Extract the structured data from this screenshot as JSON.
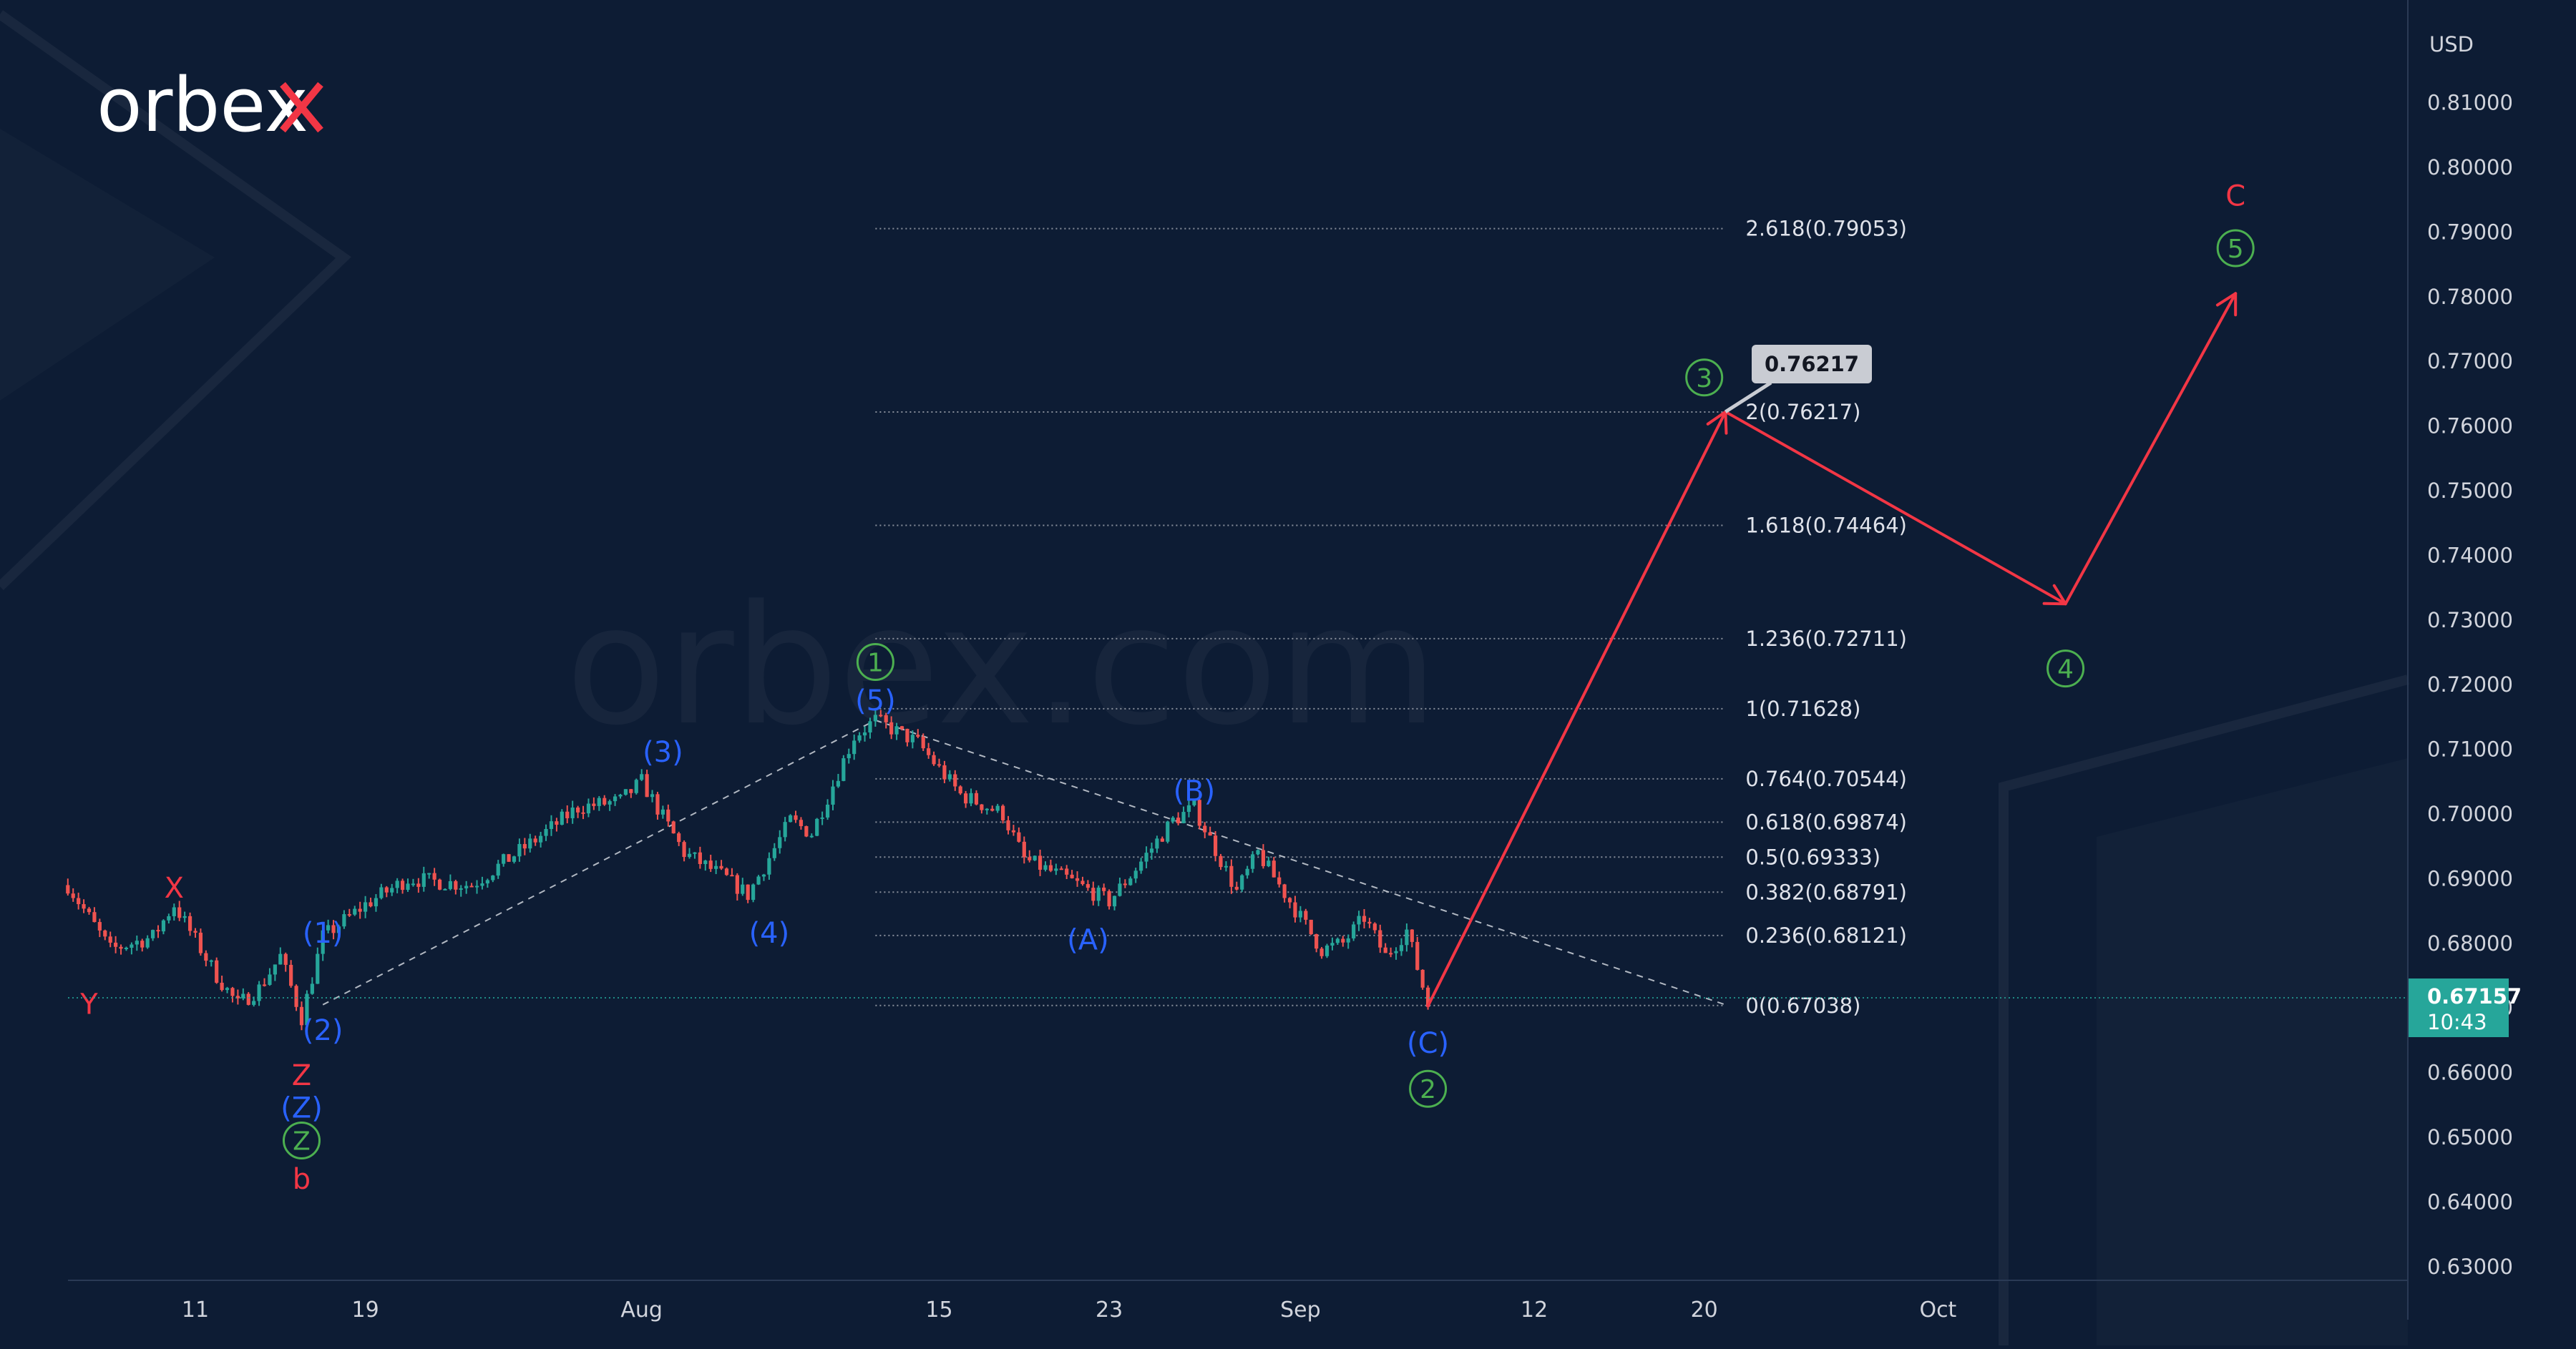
{
  "brand": {
    "logo_text": "orbex",
    "watermark": "orbex.com"
  },
  "axis": {
    "currency_label": "USD"
  },
  "current_price": {
    "value": "0.67157",
    "time": "10:43",
    "bg": "#26a69a"
  },
  "callout": {
    "value": "0.76217",
    "bg": "#c9ccd3"
  },
  "colors": {
    "up": "#26a69a",
    "down": "#ef5350",
    "forecast": "#f23645",
    "blue": "#2962ff",
    "green": "#4caf50",
    "background": "#0d1c34"
  },
  "chart_data": {
    "type": "line",
    "title": "",
    "xlabel": "",
    "ylabel": "USD",
    "ylim": [
      0.625,
      0.82
    ],
    "y_ticks": [
      0.63,
      0.64,
      0.65,
      0.66,
      0.67,
      0.68,
      0.69,
      0.7,
      0.71,
      0.72,
      0.73,
      0.74,
      0.75,
      0.76,
      0.77,
      0.78,
      0.79,
      0.8,
      0.81
    ],
    "y_tick_labels": [
      "0.63000",
      "0.64000",
      "0.65000",
      "0.66000",
      "0.67000",
      "0.68000",
      "0.69000",
      "0.70000",
      "0.71000",
      "0.72000",
      "0.73000",
      "0.74000",
      "0.75000",
      "0.76000",
      "0.77000",
      "0.78000",
      "0.79000",
      "0.80000",
      "0.81000"
    ],
    "x_ticks": [
      {
        "date": "2022-07-11",
        "label": "11"
      },
      {
        "date": "2022-07-19",
        "label": "19"
      },
      {
        "date": "2022-08-01",
        "label": "Aug"
      },
      {
        "date": "2022-08-15",
        "label": "15"
      },
      {
        "date": "2022-08-23",
        "label": "23"
      },
      {
        "date": "2022-09-01",
        "label": "Sep"
      },
      {
        "date": "2022-09-12",
        "label": "12"
      },
      {
        "date": "2022-09-20",
        "label": "20"
      },
      {
        "date": "2022-10-01",
        "label": "Oct"
      }
    ],
    "price_path": [
      {
        "date": "2022-07-05",
        "price": 0.689
      },
      {
        "date": "2022-07-07",
        "price": 0.679
      },
      {
        "date": "2022-07-09",
        "price": 0.681
      },
      {
        "date": "2022-07-10",
        "price": 0.686
      },
      {
        "date": "2022-07-12",
        "price": 0.675
      },
      {
        "date": "2022-07-13",
        "price": 0.6705
      },
      {
        "date": "2022-07-14",
        "price": 0.673
      },
      {
        "date": "2022-07-15",
        "price": 0.678
      },
      {
        "date": "2022-07-16",
        "price": 0.6685
      },
      {
        "date": "2022-07-17",
        "price": 0.681
      },
      {
        "date": "2022-07-19",
        "price": 0.686
      },
      {
        "date": "2022-07-21",
        "price": 0.69
      },
      {
        "date": "2022-07-24",
        "price": 0.689
      },
      {
        "date": "2022-07-27",
        "price": 0.696
      },
      {
        "date": "2022-07-29",
        "price": 0.701
      },
      {
        "date": "2022-07-31",
        "price": 0.702
      },
      {
        "date": "2022-08-01",
        "price": 0.705
      },
      {
        "date": "2022-08-03",
        "price": 0.694
      },
      {
        "date": "2022-08-05",
        "price": 0.69
      },
      {
        "date": "2022-08-06",
        "price": 0.6875
      },
      {
        "date": "2022-08-08",
        "price": 0.699
      },
      {
        "date": "2022-08-09",
        "price": 0.697
      },
      {
        "date": "2022-08-11",
        "price": 0.712
      },
      {
        "date": "2022-08-12",
        "price": 0.7145
      },
      {
        "date": "2022-08-14",
        "price": 0.711
      },
      {
        "date": "2022-08-16",
        "price": 0.703
      },
      {
        "date": "2022-08-18",
        "price": 0.7
      },
      {
        "date": "2022-08-19",
        "price": 0.693
      },
      {
        "date": "2022-08-21",
        "price": 0.69
      },
      {
        "date": "2022-08-23",
        "price": 0.6865
      },
      {
        "date": "2022-08-24",
        "price": 0.6905
      },
      {
        "date": "2022-08-26",
        "price": 0.699
      },
      {
        "date": "2022-08-27",
        "price": 0.701
      },
      {
        "date": "2022-08-29",
        "price": 0.688
      },
      {
        "date": "2022-08-30",
        "price": 0.694
      },
      {
        "date": "2022-09-01",
        "price": 0.684
      },
      {
        "date": "2022-09-02",
        "price": 0.679
      },
      {
        "date": "2022-09-03",
        "price": 0.68
      },
      {
        "date": "2022-09-04",
        "price": 0.684
      },
      {
        "date": "2022-09-05",
        "price": 0.678
      },
      {
        "date": "2022-09-06",
        "price": 0.682
      },
      {
        "date": "2022-09-07",
        "price": 0.6705
      }
    ],
    "fib_levels": [
      {
        "ratio": "0",
        "price": 0.67038,
        "label": "0(0.67038)"
      },
      {
        "ratio": "0.236",
        "price": 0.68121,
        "label": "0.236(0.68121)"
      },
      {
        "ratio": "0.382",
        "price": 0.68791,
        "label": "0.382(0.68791)"
      },
      {
        "ratio": "0.5",
        "price": 0.69333,
        "label": "0.5(0.69333)"
      },
      {
        "ratio": "0.618",
        "price": 0.69874,
        "label": "0.618(0.69874)"
      },
      {
        "ratio": "0.764",
        "price": 0.70544,
        "label": "0.764(0.70544)"
      },
      {
        "ratio": "1",
        "price": 0.71628,
        "label": "1(0.71628)"
      },
      {
        "ratio": "1.236",
        "price": 0.72711,
        "label": "1.236(0.72711)"
      },
      {
        "ratio": "1.618",
        "price": 0.74464,
        "label": "1.618(0.74464)"
      },
      {
        "ratio": "2",
        "price": 0.76217,
        "label": "2(0.76217)"
      },
      {
        "ratio": "2.618",
        "price": 0.79053,
        "label": "2.618(0.79053)"
      }
    ],
    "fib_range": {
      "start_date": "2022-08-12",
      "end_date": "2022-09-21"
    },
    "forecast_path": [
      {
        "date": "2022-09-07",
        "price": 0.6703
      },
      {
        "date": "2022-09-21",
        "price": 0.7622
      },
      {
        "date": "2022-10-07",
        "price": 0.7325
      },
      {
        "date": "2022-10-15",
        "price": 0.7805
      }
    ],
    "dashed_lines": [
      [
        {
          "date": "2022-07-17",
          "price": 0.6705
        },
        {
          "date": "2022-08-12",
          "price": 0.7145
        }
      ],
      [
        {
          "date": "2022-08-12",
          "price": 0.7145
        },
        {
          "date": "2022-09-21",
          "price": 0.6705
        }
      ]
    ],
    "wave_labels": [
      {
        "text": "X",
        "date": "2022-07-10",
        "price": 0.6885,
        "color": "red",
        "circled": false
      },
      {
        "text": "Y",
        "date": "2022-07-06",
        "price": 0.6705,
        "color": "red",
        "circled": false
      },
      {
        "text": "(1)",
        "date": "2022-07-17",
        "price": 0.6815,
        "color": "blue",
        "circled": false
      },
      {
        "text": "(2)",
        "date": "2022-07-17",
        "price": 0.6665,
        "color": "blue",
        "circled": false
      },
      {
        "text": "Z",
        "date": "2022-07-16",
        "price": 0.6595,
        "color": "red",
        "circled": false
      },
      {
        "text": "(Z)",
        "date": "2022-07-16",
        "price": 0.6545,
        "color": "blue",
        "circled": false
      },
      {
        "text": "Z",
        "date": "2022-07-16",
        "price": 0.6495,
        "color": "green",
        "circled": true
      },
      {
        "text": "b",
        "date": "2022-07-16",
        "price": 0.6435,
        "color": "red",
        "circled": false
      },
      {
        "text": "(3)",
        "date": "2022-08-02",
        "price": 0.7095,
        "color": "blue",
        "circled": false
      },
      {
        "text": "(4)",
        "date": "2022-08-07",
        "price": 0.6815,
        "color": "blue",
        "circled": false
      },
      {
        "text": "1",
        "date": "2022-08-12",
        "price": 0.7235,
        "color": "green",
        "circled": true
      },
      {
        "text": "(5)",
        "date": "2022-08-12",
        "price": 0.7175,
        "color": "blue",
        "circled": false
      },
      {
        "text": "(A)",
        "date": "2022-08-22",
        "price": 0.6805,
        "color": "blue",
        "circled": false
      },
      {
        "text": "(B)",
        "date": "2022-08-27",
        "price": 0.7035,
        "color": "blue",
        "circled": false
      },
      {
        "text": "(C)",
        "date": "2022-09-07",
        "price": 0.6645,
        "color": "blue",
        "circled": false
      },
      {
        "text": "2",
        "date": "2022-09-07",
        "price": 0.6575,
        "color": "green",
        "circled": true
      },
      {
        "text": "3",
        "date": "2022-09-20",
        "price": 0.7675,
        "color": "green",
        "circled": true
      },
      {
        "text": "4",
        "date": "2022-10-07",
        "price": 0.7225,
        "color": "green",
        "circled": true
      },
      {
        "text": "C",
        "date": "2022-10-15",
        "price": 0.7955,
        "color": "red",
        "circled": false
      },
      {
        "text": "5",
        "date": "2022-10-15",
        "price": 0.7875,
        "color": "green",
        "circled": true
      }
    ]
  }
}
